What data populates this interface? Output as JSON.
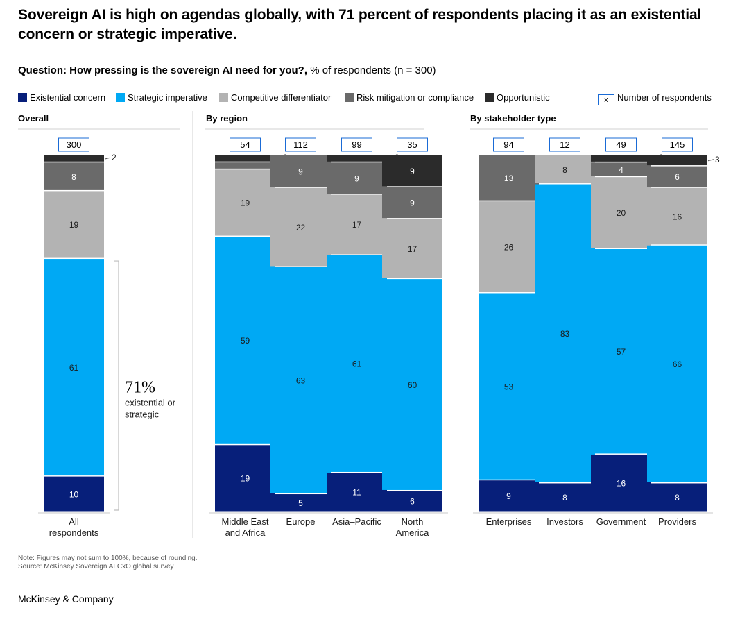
{
  "title": "Sovereign AI is high on agendas globally, with 71 percent of respondents placing it as an existential concern or strategic imperative.",
  "subtitle": {
    "question": "Question: How pressing is the sovereign AI need for you?,",
    "unit": "% of respondents (n = 300)"
  },
  "colors": {
    "existential": "#071f7a",
    "strategic": "#00a9f4",
    "competitive": "#b3b3b3",
    "risk": "#6a6a6a",
    "opportunistic": "#2b2b2b",
    "count_box": "#1a6bd6"
  },
  "legend": {
    "items": [
      {
        "label": "Existential concern",
        "color": "#071f7a"
      },
      {
        "label": "Strategic imperative",
        "color": "#00a9f4"
      },
      {
        "label": "Competitive differentiator",
        "color": "#b3b3b3"
      },
      {
        "label": "Risk mitigation or compliance",
        "color": "#6a6a6a"
      },
      {
        "label": "Opportunistic",
        "color": "#2b2b2b"
      }
    ],
    "count_symbol": "x",
    "count_label": "Number of respondents"
  },
  "chart_data": {
    "type": "bar",
    "stacked": true,
    "unit": "% of respondents",
    "series_names": [
      "Existential concern",
      "Strategic imperative",
      "Competitive differentiator",
      "Risk mitigation or compliance",
      "Opportunistic"
    ],
    "ylim": [
      0,
      100
    ],
    "groups": [
      {
        "name": "Overall",
        "bars": [
          {
            "label": "All respondents",
            "n": "300",
            "values": [
              10,
              61,
              19,
              8,
              2
            ]
          }
        ],
        "annotation": {
          "value": "71%",
          "text": "existential or strategic"
        }
      },
      {
        "name": "By region",
        "bars": [
          {
            "label": "Middle East and Africa",
            "n": "54",
            "values": [
              19,
              59,
              19,
              2,
              2
            ]
          },
          {
            "label": "Europe",
            "n": "112",
            "values": [
              5,
              63,
              22,
              9,
              0
            ]
          },
          {
            "label": "Asia–Pacific",
            "n": "99",
            "values": [
              11,
              61,
              17,
              9,
              2
            ]
          },
          {
            "label": "North America",
            "n": "35",
            "values": [
              6,
              60,
              17,
              9,
              9
            ]
          }
        ]
      },
      {
        "name": "By stakeholder type",
        "bars": [
          {
            "label": "Enterprises",
            "n": "94",
            "values": [
              9,
              53,
              26,
              13,
              0
            ]
          },
          {
            "label": "Investors",
            "n": "12",
            "values": [
              8,
              83,
              8,
              0,
              0
            ]
          },
          {
            "label": "Government",
            "n": "49",
            "values": [
              16,
              57,
              20,
              4,
              2
            ]
          },
          {
            "label": "Providers",
            "n": "145",
            "values": [
              8,
              66,
              16,
              6,
              3
            ]
          }
        ]
      }
    ]
  },
  "footer": {
    "note": "Note: Figures may not sum to 100%, because of rounding.",
    "source": "Source: McKinsey Sovereign AI CxO global survey",
    "brand": "McKinsey & Company"
  }
}
